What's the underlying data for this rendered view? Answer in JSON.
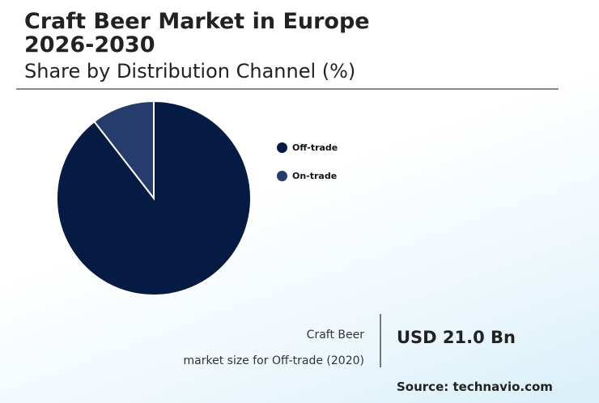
{
  "header": {
    "title": "Craft Beer Market in Europe 2026-2030",
    "subtitle": "Share by Distribution Channel (%)"
  },
  "chart_data": {
    "type": "pie",
    "title": "Craft Beer Market in Europe 2026-2030",
    "subtitle": "Share by Distribution Channel (%)",
    "categories": [
      "Off-trade",
      "On-trade"
    ],
    "values": [
      89.5,
      10.5
    ],
    "colors": [
      "#061b43",
      "#263c6d"
    ],
    "legend_position": "right"
  },
  "kpi": {
    "label_line1": "Craft Beer",
    "label_line2": "market size for Off-trade (2020)",
    "value": "USD 21.0 Bn"
  },
  "source": "Source: technavio.com"
}
